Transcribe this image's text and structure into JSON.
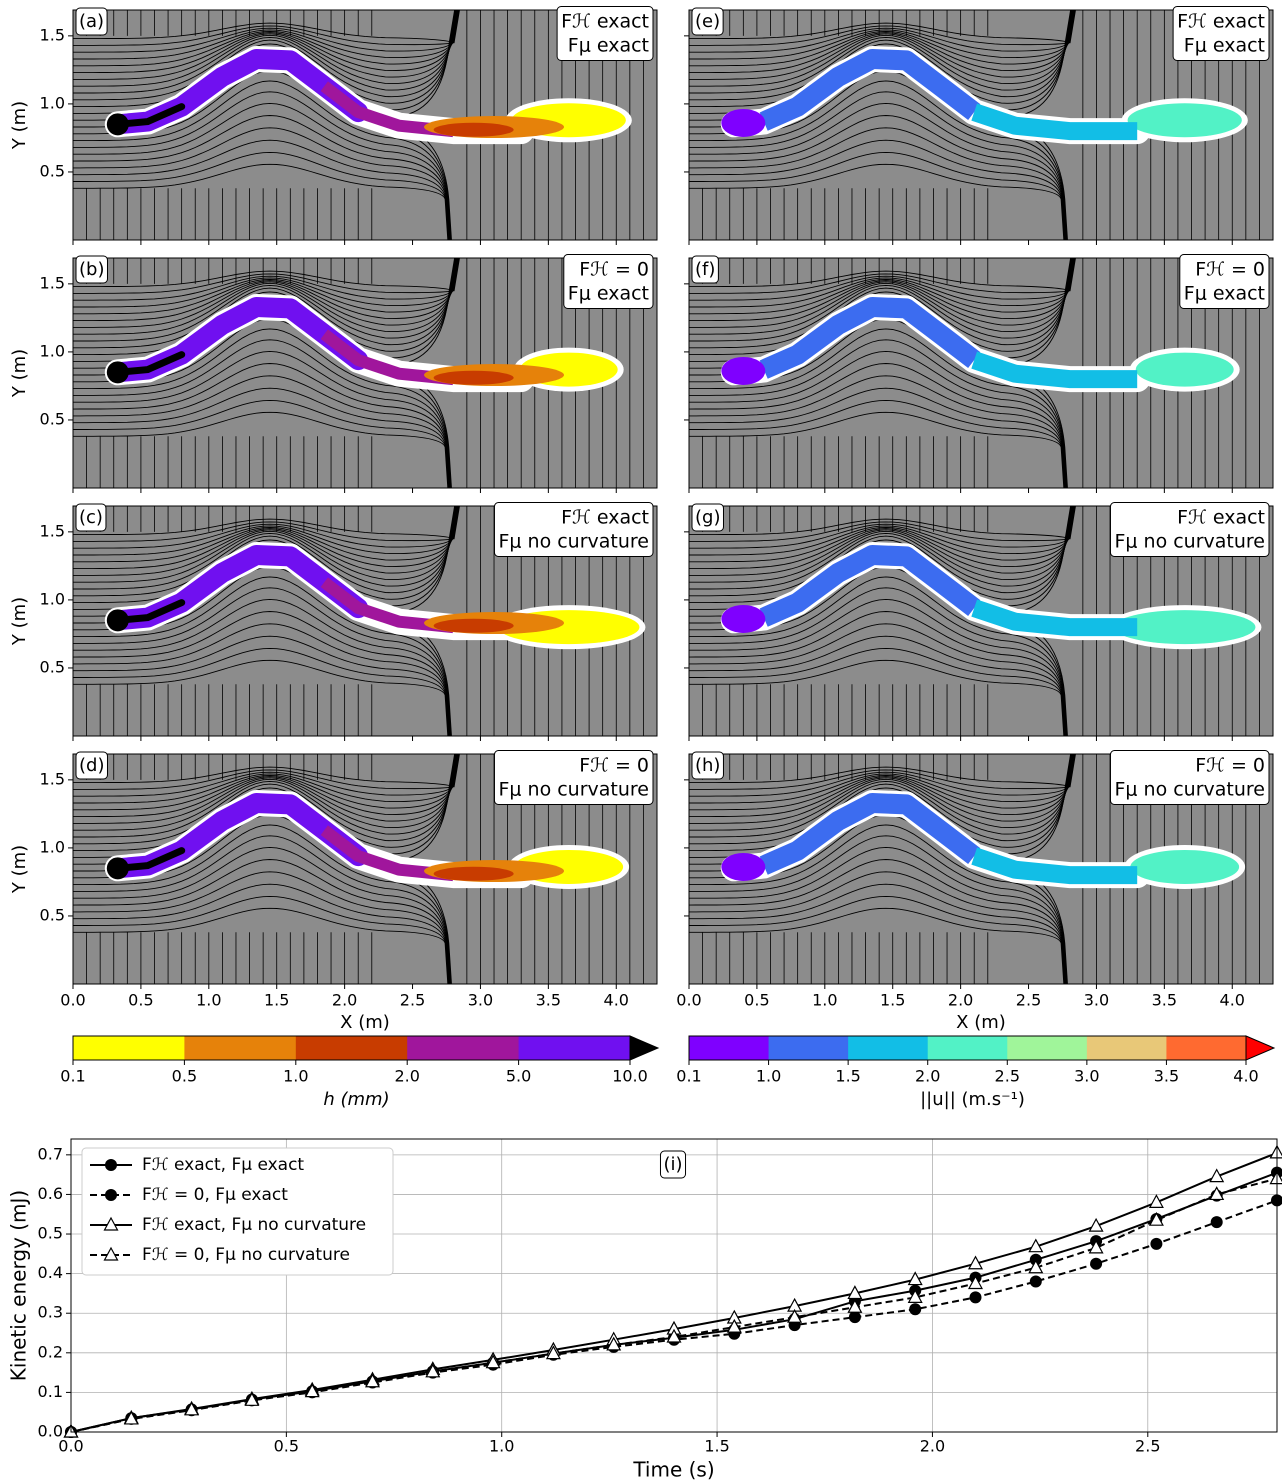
{
  "maps": {
    "xlim": [
      0,
      4.3
    ],
    "ylim": [
      0,
      1.69
    ],
    "xticks": [
      {
        "value": 0,
        "label": "0.0"
      },
      0.5,
      {
        "value": 1,
        "label": "1.0"
      },
      1.5,
      {
        "value": 2,
        "label": "2.0"
      },
      2.5,
      {
        "value": 3,
        "label": "3.0"
      },
      3.5,
      {
        "value": 4,
        "label": "4.0"
      }
    ],
    "yticks": [
      0.5,
      {
        "value": 1,
        "label": "1.0"
      },
      1.5
    ],
    "xlabel": "X (m)",
    "ylabel": "Y (m)",
    "panels": [
      {
        "label": "(a)",
        "annotation": [
          "Fℋ exact",
          "Fμ exact"
        ],
        "field": "h"
      },
      {
        "label": "(b)",
        "annotation": [
          "Fℋ = 0",
          "Fμ exact"
        ],
        "field": "h"
      },
      {
        "label": "(c)",
        "annotation": [
          "Fℋ exact",
          "Fμ no curvature"
        ],
        "field": "h"
      },
      {
        "label": "(d)",
        "annotation": [
          "Fℋ = 0",
          "Fμ no curvature"
        ],
        "field": "h"
      },
      {
        "label": "(e)",
        "annotation": [
          "Fℋ exact",
          "Fμ exact"
        ],
        "field": "u"
      },
      {
        "label": "(f)",
        "annotation": [
          "Fℋ = 0",
          "Fμ exact"
        ],
        "field": "u"
      },
      {
        "label": "(g)",
        "annotation": [
          "Fℋ exact",
          "Fμ no curvature"
        ],
        "field": "u"
      },
      {
        "label": "(h)",
        "annotation": [
          "Fℋ = 0",
          "Fμ no curvature"
        ],
        "field": "u"
      }
    ]
  },
  "colorbars": [
    {
      "label": "h (mm)",
      "ticks": [
        0.1,
        0.5,
        {
          "value": 1,
          "label": "1.0"
        },
        {
          "value": 2,
          "label": "2.0"
        },
        {
          "value": 5,
          "label": "5.0"
        },
        {
          "value": 10,
          "label": "10.0"
        }
      ],
      "colors": [
        "#ffff00",
        "#e6820a",
        "#c83c00",
        "#a0169c",
        "#7010f0"
      ],
      "extend_color": "#000000"
    },
    {
      "label": "||u|| (m.s⁻¹)",
      "ticks": [
        0.1,
        {
          "value": 1,
          "label": "1.0"
        },
        1.5,
        {
          "value": 2,
          "label": "2.0"
        },
        2.5,
        {
          "value": 3,
          "label": "3.0"
        },
        3.5,
        {
          "value": 4,
          "label": "4.0"
        }
      ],
      "colors": [
        "#7f00ff",
        "#3c6cf0",
        "#12bee6",
        "#52f2c6",
        "#a0f59a",
        "#e8c878",
        "#ff6a30"
      ],
      "extend_color": "#ff0000"
    }
  ],
  "chart_data": {
    "type": "line",
    "panel_label": "(i)",
    "xlabel": "Time (s)",
    "ylabel": "Kinetic energy (mJ)",
    "xlim": [
      0,
      2.8
    ],
    "ylim": [
      0,
      0.74
    ],
    "xticks": [
      {
        "value": 0,
        "label": "0.0"
      },
      0.5,
      {
        "value": 1,
        "label": "1.0"
      },
      1.5,
      {
        "value": 2,
        "label": "2.0"
      },
      2.5
    ],
    "yticks": [
      {
        "value": 0,
        "label": "0.0"
      },
      0.1,
      0.2,
      0.3,
      0.4,
      0.5,
      0.6,
      0.7
    ],
    "grid": true,
    "legend": "upper left",
    "x": [
      0,
      0.14,
      0.28,
      0.42,
      0.56,
      0.7,
      0.84,
      0.98,
      1.12,
      1.26,
      1.4,
      1.54,
      1.68,
      1.82,
      1.96,
      2.1,
      2.24,
      2.38,
      2.52,
      2.66,
      2.8
    ],
    "series": [
      {
        "name": "Fℋ exact, Fμ exact",
        "color": "#000000",
        "marker": "circle",
        "linestyle": "solid",
        "values": [
          0,
          0.035,
          0.057,
          0.082,
          0.103,
          0.128,
          0.153,
          0.175,
          0.198,
          0.22,
          0.238,
          0.258,
          0.285,
          0.33,
          0.357,
          0.39,
          0.435,
          0.482,
          0.538,
          0.597,
          0.655
        ]
      },
      {
        "name": "Fℋ = 0, Fμ exact",
        "color": "#000000",
        "marker": "circle",
        "linestyle": "dashed",
        "values": [
          0,
          0.033,
          0.055,
          0.08,
          0.1,
          0.125,
          0.15,
          0.17,
          0.195,
          0.215,
          0.233,
          0.248,
          0.27,
          0.29,
          0.31,
          0.34,
          0.38,
          0.425,
          0.475,
          0.53,
          0.585
        ]
      },
      {
        "name": "Fℋ exact, Fμ no curvature",
        "color": "#000000",
        "marker": "triangle",
        "linestyle": "solid",
        "values": [
          0,
          0.035,
          0.058,
          0.083,
          0.106,
          0.132,
          0.158,
          0.182,
          0.207,
          0.233,
          0.26,
          0.288,
          0.318,
          0.35,
          0.385,
          0.425,
          0.468,
          0.52,
          0.58,
          0.645,
          0.705
        ]
      },
      {
        "name": "Fℋ = 0, Fμ no curvature",
        "color": "#000000",
        "marker": "triangle",
        "linestyle": "dashed",
        "values": [
          0,
          0.033,
          0.056,
          0.08,
          0.102,
          0.127,
          0.152,
          0.175,
          0.198,
          0.22,
          0.24,
          0.265,
          0.29,
          0.315,
          0.34,
          0.375,
          0.415,
          0.465,
          0.535,
          0.6,
          0.64
        ]
      }
    ]
  }
}
